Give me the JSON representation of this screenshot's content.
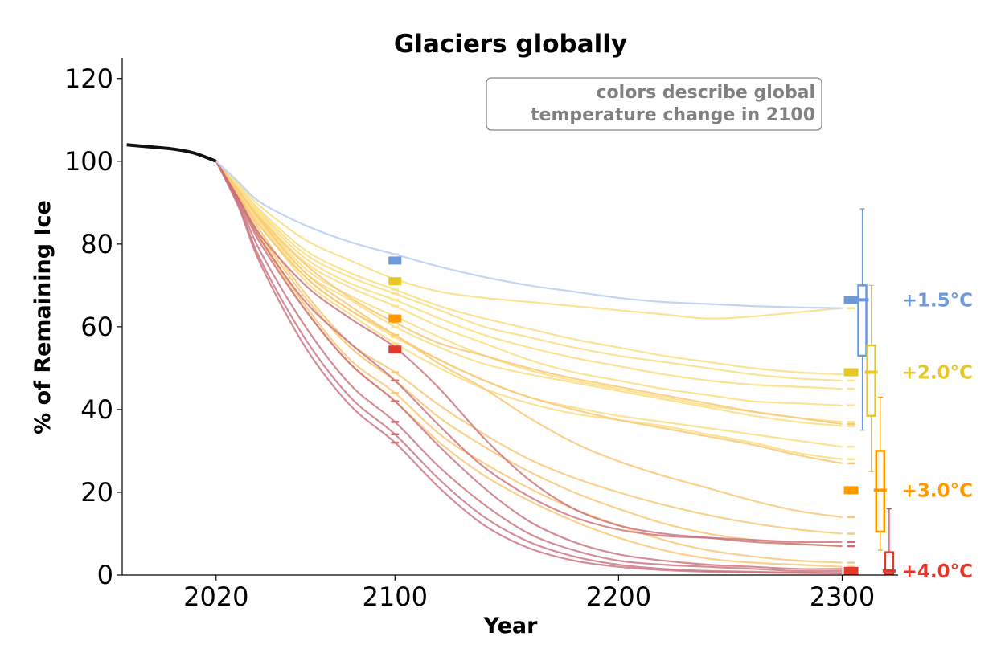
{
  "chart_data": {
    "type": "line",
    "title": "Glaciers globally",
    "xlabel": "Year",
    "ylabel": "% of Remaining Ice",
    "xlim": [
      1978,
      2325
    ],
    "ylim": [
      0,
      125
    ],
    "x_ticks": [
      2020,
      2100,
      2200,
      2300
    ],
    "y_ticks": [
      0,
      20,
      40,
      60,
      80,
      100,
      120
    ],
    "grid": false,
    "annotation": {
      "lines": [
        "colors describe global",
        "temperature change in 2100"
      ],
      "placement": "top-right"
    },
    "colors": {
      "blue": "#6f98d6",
      "yellow": "#e5c825",
      "orange": "#ff9900",
      "red": "#e03a2c",
      "history": "#111111"
    },
    "historical": {
      "x": [
        1980,
        1990,
        2000,
        2010,
        2020
      ],
      "y": [
        104,
        103.5,
        103,
        102,
        100
      ]
    },
    "series_x": [
      2020,
      2030,
      2040,
      2060,
      2080,
      2100,
      2120,
      2140,
      2160,
      2180,
      2200,
      2220,
      2240,
      2260,
      2280,
      2300
    ],
    "series": [
      {
        "group": "blue",
        "values": [
          100,
          95,
          90,
          84.5,
          80.5,
          77.5,
          74.5,
          72,
          70,
          68.5,
          67,
          66,
          65.5,
          65,
          64.7,
          64.5
        ]
      },
      {
        "group": "yellow",
        "values": [
          100,
          94.5,
          89,
          81,
          76,
          71.5,
          68.5,
          67,
          66,
          65,
          64,
          63,
          62,
          62.5,
          63.5,
          64.5
        ]
      },
      {
        "group": "yellow",
        "values": [
          100,
          94,
          88,
          78.5,
          73,
          69,
          65,
          62,
          59.5,
          57,
          55,
          53,
          51.5,
          50,
          49,
          48.5
        ]
      },
      {
        "group": "yellow",
        "values": [
          100,
          94,
          87.5,
          77.5,
          72,
          68,
          64,
          60,
          57.5,
          55,
          53,
          51.5,
          50,
          48.5,
          47.5,
          47
        ]
      },
      {
        "group": "yellow",
        "values": [
          100,
          93.5,
          87,
          76.5,
          70.5,
          66.5,
          62,
          58,
          55,
          52.5,
          50.5,
          48.5,
          47,
          46,
          45.5,
          45
        ]
      },
      {
        "group": "yellow",
        "values": [
          100,
          93.5,
          86.5,
          75.5,
          69.5,
          65,
          60,
          56,
          52,
          49,
          47,
          45,
          43.5,
          42,
          41.5,
          41
        ]
      },
      {
        "group": "yellow",
        "values": [
          100,
          93,
          86,
          74,
          67.5,
          62.5,
          57.5,
          53,
          49.5,
          47,
          45,
          43,
          41,
          39.5,
          38,
          37
        ]
      },
      {
        "group": "yellow",
        "values": [
          100,
          93,
          85.5,
          73,
          66.5,
          60,
          55,
          51,
          48.5,
          46.5,
          44.5,
          42.5,
          40.5,
          38.5,
          37,
          36
        ]
      },
      {
        "group": "yellow",
        "values": [
          100,
          92.5,
          85,
          72,
          64,
          57.5,
          52,
          47,
          43,
          40.5,
          38.5,
          37,
          35.5,
          34,
          32.5,
          31
        ]
      },
      {
        "group": "yellow",
        "values": [
          100,
          92.5,
          84.5,
          71,
          63,
          56,
          50,
          45,
          41.5,
          39,
          37.5,
          36,
          34,
          32,
          29.5,
          28
        ]
      },
      {
        "group": "orange",
        "values": [
          100,
          93,
          86,
          75,
          67,
          61,
          56,
          53,
          50,
          47.5,
          45.5,
          43.5,
          41.5,
          39.5,
          38,
          36.5
        ]
      },
      {
        "group": "orange",
        "values": [
          100,
          93,
          85.5,
          73,
          65,
          58,
          52,
          47,
          43,
          40,
          37.5,
          35.5,
          33.5,
          31.5,
          29,
          27
        ]
      },
      {
        "group": "orange",
        "values": [
          100,
          92,
          84,
          72,
          64,
          58,
          51,
          45,
          38,
          32,
          27.5,
          24,
          21,
          18,
          15.5,
          14
        ]
      },
      {
        "group": "orange",
        "values": [
          100,
          92,
          83,
          68,
          56,
          49,
          41,
          34,
          28,
          23.5,
          20,
          17,
          14.5,
          12.5,
          11,
          10
        ]
      },
      {
        "group": "orange",
        "values": [
          100,
          91.5,
          82,
          67,
          55,
          47,
          38,
          31,
          25,
          20,
          16,
          12.5,
          10,
          8.5,
          7.5,
          7
        ]
      },
      {
        "group": "orange",
        "values": [
          100,
          91.5,
          81.5,
          65,
          52,
          44,
          34,
          27,
          21,
          16,
          12,
          8.5,
          6,
          4.5,
          3.5,
          3
        ]
      },
      {
        "group": "orange",
        "values": [
          100,
          91,
          81,
          64,
          51,
          42,
          32,
          24,
          18,
          13,
          9,
          6,
          4,
          3,
          2.5,
          2
        ]
      },
      {
        "group": "red",
        "values": [
          100,
          91,
          82,
          70,
          62,
          55,
          45,
          33,
          23,
          16,
          12,
          10,
          9,
          8,
          7.5,
          7
        ]
      },
      {
        "group": "red",
        "values": [
          100,
          91,
          81,
          66,
          56,
          47,
          36,
          26,
          19,
          14,
          11,
          9.5,
          9,
          8.5,
          8,
          8
        ]
      },
      {
        "group": "red",
        "values": [
          100,
          90.5,
          80,
          64,
          51,
          42,
          31,
          21,
          13,
          8,
          5,
          3.5,
          2.5,
          2,
          1.5,
          1.5
        ]
      },
      {
        "group": "red",
        "values": [
          100,
          90,
          78,
          60,
          46,
          37,
          26,
          17,
          10,
          6,
          3.5,
          2.5,
          2,
          1.5,
          1,
          1
        ]
      },
      {
        "group": "red",
        "values": [
          100,
          89.5,
          76,
          57,
          43,
          34,
          23,
          14,
          8,
          4.5,
          2.5,
          1.5,
          1,
          0.8,
          0.6,
          0.5
        ]
      },
      {
        "group": "red",
        "values": [
          100,
          89,
          75,
          55,
          41,
          32,
          21,
          12,
          6.5,
          3.5,
          2,
          1.2,
          0.8,
          0.6,
          0.5,
          0.4
        ]
      }
    ],
    "markers_2100": [
      {
        "group": "blue",
        "value": 76
      },
      {
        "group": "yellow",
        "value": 71
      },
      {
        "group": "orange",
        "value": 62
      },
      {
        "group": "red",
        "value": 54.5
      }
    ],
    "markers_2300": [
      {
        "group": "blue",
        "value": 66.5
      },
      {
        "group": "yellow",
        "value": 49
      },
      {
        "group": "orange",
        "value": 20.5
      },
      {
        "group": "red",
        "value": 1
      }
    ],
    "boxplots_2300": [
      {
        "group": "blue",
        "label": "+1.5°C",
        "whisker_low": 35,
        "q1": 53,
        "median": 66.5,
        "q3": 70,
        "whisker_high": 88.5
      },
      {
        "group": "yellow",
        "label": "+2.0°C",
        "whisker_low": 25,
        "q1": 38.5,
        "median": 49,
        "q3": 55.5,
        "whisker_high": 70
      },
      {
        "group": "orange",
        "label": "+3.0°C",
        "whisker_low": 6,
        "q1": 10.5,
        "median": 20.5,
        "q3": 30,
        "whisker_high": 43
      },
      {
        "group": "red",
        "label": "+4.0°C",
        "whisker_low": 0.2,
        "q1": 0.2,
        "median": 1,
        "q3": 5.5,
        "whisker_high": 16
      }
    ]
  }
}
